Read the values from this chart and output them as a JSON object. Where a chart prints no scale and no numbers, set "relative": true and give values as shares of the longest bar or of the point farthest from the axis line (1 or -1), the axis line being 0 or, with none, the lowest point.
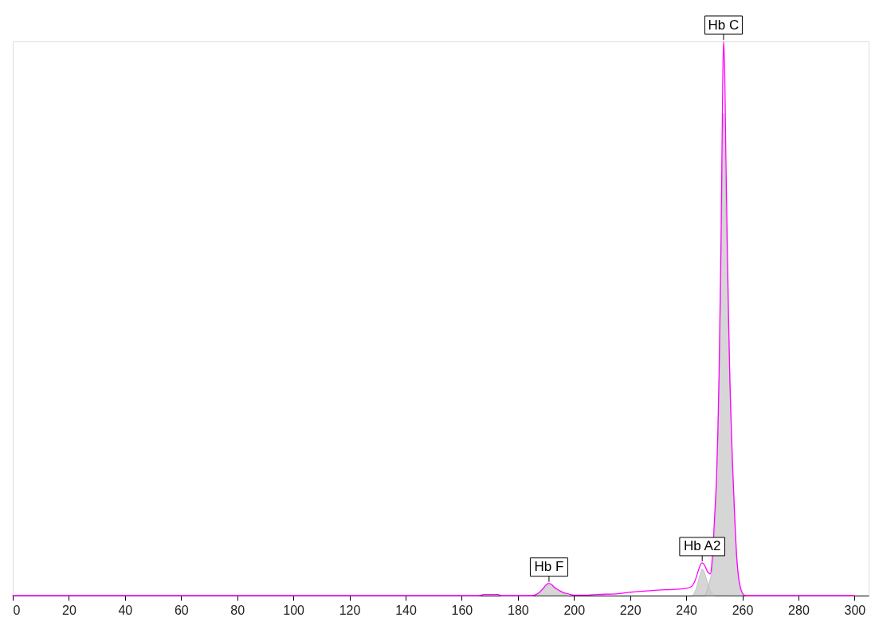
{
  "chart_data": {
    "type": "line",
    "relative": true,
    "tick_labels": "x",
    "grid": false,
    "xlim": [
      0,
      305
    ],
    "xticks": [
      0,
      20,
      40,
      60,
      80,
      100,
      120,
      140,
      160,
      180,
      200,
      220,
      240,
      260,
      280,
      300
    ],
    "series": [
      {
        "type": "area",
        "color": "#c8c8c8",
        "x": [
          186.5,
          188,
          189.5,
          191.1,
          192.5,
          194,
          196,
          198
        ],
        "values": [
          0,
          0.005,
          0.014,
          0.02,
          0.016,
          0.01,
          0.004,
          0
        ]
      },
      {
        "type": "area",
        "color": "#c8c8c8",
        "x": [
          242.3,
          243.5,
          244.5,
          245.2,
          245.7,
          246.3,
          247.2,
          248.2,
          249.2,
          250
        ],
        "values": [
          0,
          0.012,
          0.03,
          0.042,
          0.048,
          0.044,
          0.03,
          0.014,
          0.004,
          0
        ]
      },
      {
        "type": "area",
        "color": "#c8c8c8",
        "x": [
          246.8,
          247.5,
          248.3,
          249.3,
          250.3,
          250.8,
          251.5,
          252.0,
          252.5,
          253.0,
          253.3,
          253.7,
          254.3,
          255.1,
          255.8,
          256.7,
          257.5,
          258.3,
          259.2,
          260.2
        ],
        "values": [
          0,
          0.01,
          0.025,
          0.05,
          0.13,
          0.2,
          0.33,
          0.47,
          0.62,
          0.8,
          0.87,
          0.8,
          0.66,
          0.48,
          0.35,
          0.2,
          0.11,
          0.05,
          0.015,
          0
        ]
      },
      {
        "color": "#ff00ff",
        "x": [
          0,
          166,
          168,
          173,
          174,
          185,
          186,
          187.5,
          189,
          190,
          191.1,
          192,
          193,
          194.5,
          196,
          198,
          200,
          205,
          208,
          215,
          220,
          222,
          225,
          230,
          235,
          240,
          242,
          243,
          244,
          245,
          245.7,
          246.5,
          247.5,
          248.6,
          249.0,
          249.3,
          249.8,
          250.3,
          250.8,
          251.3,
          251.7,
          252.0,
          252.4,
          252.7,
          253.0,
          253.3,
          253.7,
          254.1,
          254.6,
          255.1,
          255.6,
          256.2,
          256.7,
          257.3,
          258.0,
          258.6,
          259.3,
          260.0,
          260.6,
          261.5,
          300
        ],
        "values": [
          0,
          0,
          0.002,
          0.002,
          0,
          0,
          0.001,
          0.005,
          0.013,
          0.019,
          0.022,
          0.02,
          0.015,
          0.01,
          0.006,
          0.003,
          0.001,
          0.001,
          0.002,
          0.003,
          0.006,
          0.007,
          0.008,
          0.01,
          0.011,
          0.013,
          0.017,
          0.025,
          0.04,
          0.055,
          0.059,
          0.055,
          0.044,
          0.039,
          0.05,
          0.069,
          0.11,
          0.16,
          0.213,
          0.3,
          0.4,
          0.5,
          0.64,
          0.78,
          0.92,
          1.0,
          0.95,
          0.8,
          0.64,
          0.5,
          0.38,
          0.28,
          0.213,
          0.14,
          0.069,
          0.035,
          0.015,
          0.005,
          0.001,
          0,
          0
        ]
      }
    ],
    "annotations": [
      {
        "text": "Hb F",
        "x": 191.1,
        "y": 0.022
      },
      {
        "text": "Hb A2",
        "x": 245.7,
        "y": 0.059
      },
      {
        "text": "Hb C",
        "x": 253.3,
        "y": 1.0
      }
    ]
  }
}
